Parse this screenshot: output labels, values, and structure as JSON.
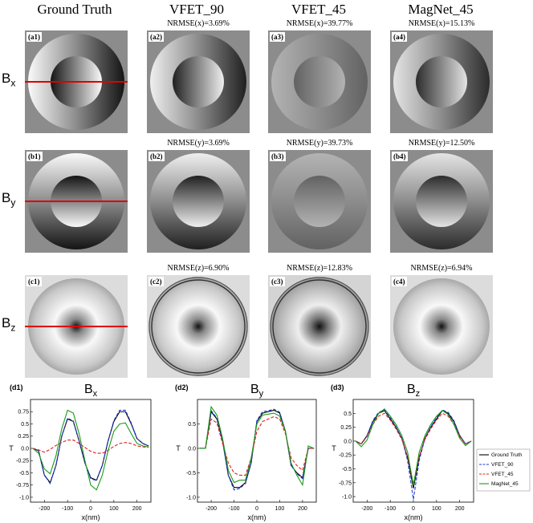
{
  "columns": [
    "Ground Truth",
    "VFET_90",
    "VFET_45",
    "MagNet_45"
  ],
  "rows": [
    {
      "label_main": "B",
      "label_sub": "x",
      "panels": [
        "(a1)",
        "(a2)",
        "(a3)",
        "(a4)"
      ],
      "nrmse": [
        "",
        "NRMSE(x)=3.69%",
        "NRMSE(x)=39.77%",
        "NRMSE(x)=15.13%"
      ]
    },
    {
      "label_main": "B",
      "label_sub": "y",
      "panels": [
        "(b1)",
        "(b2)",
        "(b3)",
        "(b4)"
      ],
      "nrmse": [
        "",
        "NRMSE(y)=3.69%",
        "NRMSE(y)=39.73%",
        "NRMSE(y)=12.50%"
      ]
    },
    {
      "label_main": "B",
      "label_sub": "z",
      "panels": [
        "(c1)",
        "(c2)",
        "(c3)",
        "(c4)"
      ],
      "nrmse": [
        "",
        "NRMSE(z)=6.90%",
        "NRMSE(z)=12.83%",
        "NRMSE(z)=6.94%"
      ]
    }
  ],
  "chart_data": [
    {
      "type": "line",
      "panel_label": "(d1)",
      "title_main": "B",
      "title_sub": "x",
      "xlabel": "x(nm)",
      "ylabel": "T",
      "xlim": [
        -260,
        260
      ],
      "ylim": [
        -1.1,
        1.0
      ],
      "xticks": [
        -200,
        -100,
        0,
        100,
        200
      ],
      "yticks": [
        -1.0,
        -0.75,
        -0.5,
        -0.25,
        0.0,
        0.25,
        0.5,
        0.75
      ],
      "ytick_labels": [
        "-1.0",
        "-0.75",
        "-0.5",
        "-0.25",
        "0.0",
        "0.25",
        "0.5",
        "0.75"
      ],
      "x": [
        -250,
        -225,
        -200,
        -175,
        -150,
        -125,
        -100,
        -75,
        -50,
        -25,
        0,
        25,
        50,
        75,
        100,
        125,
        150,
        175,
        200,
        225,
        250
      ],
      "series": [
        {
          "name": "Ground Truth",
          "color": "#000000",
          "dash": "",
          "values": [
            0.0,
            -0.05,
            -0.55,
            -0.7,
            -0.35,
            0.25,
            0.6,
            0.55,
            0.15,
            -0.3,
            -0.6,
            -0.65,
            -0.35,
            0.15,
            0.55,
            0.75,
            0.75,
            0.5,
            0.2,
            0.1,
            0.05
          ]
        },
        {
          "name": "VFET_90",
          "color": "#1f3bd6",
          "dash": "4,2",
          "values": [
            0.0,
            -0.05,
            -0.55,
            -0.72,
            -0.35,
            0.25,
            0.62,
            0.56,
            0.15,
            -0.3,
            -0.62,
            -0.66,
            -0.35,
            0.15,
            0.57,
            0.78,
            0.78,
            0.52,
            0.2,
            0.1,
            0.05
          ]
        },
        {
          "name": "VFET_45",
          "color": "#e02020",
          "dash": "4,2",
          "values": [
            0.0,
            -0.03,
            -0.08,
            -0.02,
            0.06,
            0.12,
            0.17,
            0.17,
            0.1,
            0.02,
            -0.06,
            -0.1,
            -0.1,
            -0.04,
            0.04,
            0.1,
            0.12,
            0.1,
            0.05,
            0.03,
            0.02
          ]
        },
        {
          "name": "MagNet_45",
          "color": "#1a9a1a",
          "dash": "",
          "values": [
            0.0,
            -0.1,
            -0.42,
            -0.52,
            -0.15,
            0.4,
            0.78,
            0.72,
            0.3,
            -0.25,
            -0.75,
            -0.85,
            -0.55,
            -0.05,
            0.35,
            0.5,
            0.52,
            0.3,
            0.1,
            0.05,
            0.03
          ]
        }
      ]
    },
    {
      "type": "line",
      "panel_label": "(d2)",
      "title_main": "B",
      "title_sub": "y",
      "xlabel": "x(nm)",
      "ylabel": "T",
      "xlim": [
        -260,
        260
      ],
      "ylim": [
        -1.1,
        1.0
      ],
      "xticks": [
        -200,
        -100,
        0,
        100,
        200
      ],
      "yticks": [
        -1.0,
        -0.5,
        0.0,
        0.5
      ],
      "ytick_labels": [
        "-1.0",
        "-0.5",
        "0.0",
        "0.5"
      ],
      "x": [
        -250,
        -225,
        -200,
        -175,
        -150,
        -125,
        -100,
        -75,
        -50,
        -25,
        0,
        25,
        50,
        75,
        100,
        125,
        150,
        175,
        200,
        225,
        250
      ],
      "series": [
        {
          "name": "Ground Truth",
          "color": "#000000",
          "dash": "",
          "values": [
            0.0,
            0.0,
            0.75,
            0.6,
            0.15,
            -0.55,
            -0.8,
            -0.8,
            -0.7,
            -0.3,
            0.55,
            0.72,
            0.75,
            0.78,
            0.72,
            0.35,
            -0.35,
            -0.5,
            -0.6,
            0.0,
            0.0
          ]
        },
        {
          "name": "VFET_90",
          "color": "#1f3bd6",
          "dash": "4,2",
          "values": [
            0.0,
            0.0,
            0.77,
            0.62,
            0.15,
            -0.55,
            -0.85,
            -0.82,
            -0.72,
            -0.3,
            0.57,
            0.75,
            0.77,
            0.8,
            0.74,
            0.35,
            -0.35,
            -0.52,
            -0.62,
            0.0,
            0.0
          ]
        },
        {
          "name": "VFET_45",
          "color": "#e02020",
          "dash": "4,2",
          "values": [
            0.0,
            0.0,
            0.6,
            0.52,
            0.1,
            -0.3,
            -0.5,
            -0.55,
            -0.55,
            -0.2,
            0.35,
            0.55,
            0.6,
            0.65,
            0.6,
            0.3,
            -0.2,
            -0.35,
            -0.45,
            0.0,
            0.0
          ]
        },
        {
          "name": "MagNet_45",
          "color": "#1a9a1a",
          "dash": "",
          "values": [
            0.0,
            0.0,
            0.85,
            0.68,
            0.2,
            -0.45,
            -0.7,
            -0.65,
            -0.65,
            -0.2,
            0.5,
            0.68,
            0.7,
            0.72,
            0.66,
            0.35,
            -0.3,
            -0.55,
            -0.75,
            0.05,
            0.0
          ]
        }
      ]
    },
    {
      "type": "line",
      "panel_label": "(d3)",
      "title_main": "B",
      "title_sub": "z",
      "xlabel": "x(nm)",
      "ylabel": "T",
      "xlim": [
        -260,
        260
      ],
      "ylim": [
        -1.1,
        0.75
      ],
      "xticks": [
        -200,
        -100,
        0,
        100,
        200
      ],
      "yticks": [
        -1.0,
        -0.75,
        -0.5,
        -0.25,
        0.0,
        0.25,
        0.5
      ],
      "ytick_labels": [
        "-1.0",
        "-0.75",
        "-0.5",
        "-0.25",
        "0.0",
        "0.25",
        "0.5"
      ],
      "legend_position": "bottom-right",
      "x": [
        -250,
        -225,
        -200,
        -175,
        -150,
        -125,
        -100,
        -75,
        -50,
        -25,
        0,
        25,
        50,
        75,
        100,
        125,
        150,
        175,
        200,
        225,
        250
      ],
      "series": [
        {
          "name": "Ground Truth",
          "color": "#000000",
          "dash": "",
          "values": [
            0.0,
            -0.05,
            0.1,
            0.35,
            0.5,
            0.55,
            0.4,
            0.25,
            0.05,
            -0.3,
            -0.85,
            -0.3,
            0.05,
            0.25,
            0.4,
            0.55,
            0.5,
            0.35,
            0.1,
            -0.05,
            0.0
          ]
        },
        {
          "name": "VFET_90",
          "color": "#1f3bd6",
          "dash": "4,2",
          "values": [
            0.0,
            -0.05,
            0.1,
            0.37,
            0.52,
            0.56,
            0.42,
            0.26,
            0.05,
            -0.35,
            -1.05,
            -0.35,
            0.05,
            0.26,
            0.42,
            0.56,
            0.52,
            0.37,
            0.1,
            -0.05,
            0.0
          ]
        },
        {
          "name": "VFET_45",
          "color": "#e02020",
          "dash": "4,2",
          "values": [
            0.0,
            -0.05,
            0.08,
            0.3,
            0.45,
            0.5,
            0.38,
            0.22,
            0.03,
            -0.28,
            -0.78,
            -0.28,
            0.03,
            0.22,
            0.38,
            0.5,
            0.45,
            0.3,
            0.08,
            -0.05,
            0.0
          ]
        },
        {
          "name": "MagNet_45",
          "color": "#1a9a1a",
          "dash": "",
          "values": [
            0.0,
            -0.1,
            0.02,
            0.3,
            0.5,
            0.58,
            0.45,
            0.3,
            0.1,
            -0.2,
            -0.8,
            -0.2,
            0.1,
            0.3,
            0.45,
            0.55,
            0.48,
            0.3,
            0.05,
            -0.08,
            0.0
          ]
        }
      ]
    }
  ]
}
